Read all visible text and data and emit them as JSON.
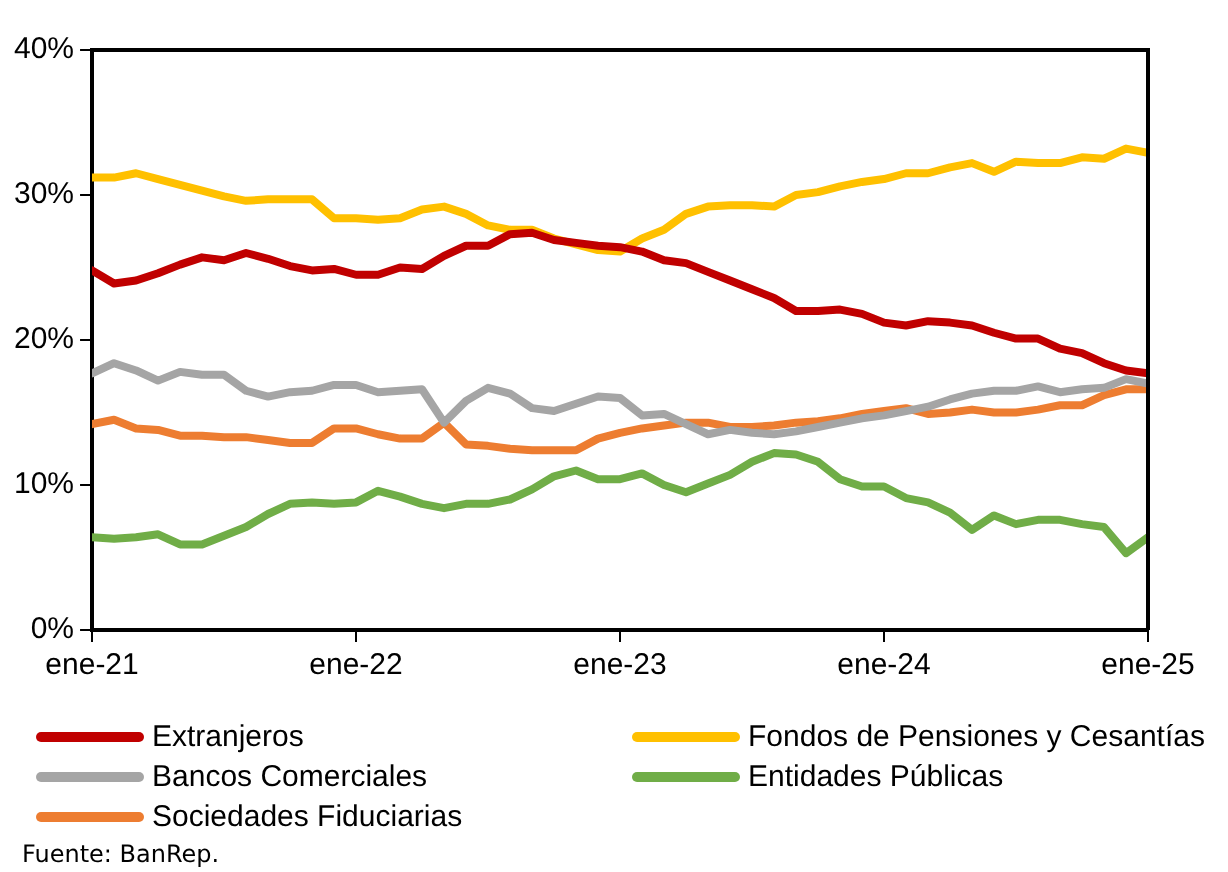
{
  "chart_data": {
    "type": "line",
    "x": [
      "2021-01",
      "2021-02",
      "2021-03",
      "2021-04",
      "2021-05",
      "2021-06",
      "2021-07",
      "2021-08",
      "2021-09",
      "2021-10",
      "2021-11",
      "2021-12",
      "2022-01",
      "2022-02",
      "2022-03",
      "2022-04",
      "2022-05",
      "2022-06",
      "2022-07",
      "2022-08",
      "2022-09",
      "2022-10",
      "2022-11",
      "2022-12",
      "2023-01",
      "2023-02",
      "2023-03",
      "2023-04",
      "2023-05",
      "2023-06",
      "2023-07",
      "2023-08",
      "2023-09",
      "2023-10",
      "2023-11",
      "2023-12",
      "2024-01",
      "2024-02",
      "2024-03",
      "2024-04",
      "2024-05",
      "2024-06",
      "2024-07",
      "2024-08",
      "2024-09",
      "2024-10",
      "2024-11",
      "2024-12",
      "2025-01"
    ],
    "series": [
      {
        "name": "Extranjeros",
        "color": "#c00000",
        "values": [
          24.8,
          23.9,
          24.1,
          24.6,
          25.2,
          25.7,
          25.5,
          26.0,
          25.6,
          25.1,
          24.8,
          24.9,
          24.5,
          24.5,
          25.0,
          24.9,
          25.8,
          26.5,
          26.5,
          27.3,
          27.4,
          26.9,
          26.7,
          26.5,
          26.4,
          26.1,
          25.5,
          25.3,
          24.7,
          24.1,
          23.5,
          22.9,
          22.0,
          22.0,
          22.1,
          21.8,
          21.2,
          21.0,
          21.3,
          21.2,
          21.0,
          20.5,
          20.1,
          20.1,
          19.4,
          19.1,
          18.4,
          17.9,
          17.7
        ]
      },
      {
        "name": "Fondos de Pensiones y Cesantías",
        "color": "#ffc000",
        "values": [
          31.2,
          31.2,
          31.5,
          31.1,
          30.7,
          30.3,
          29.9,
          29.6,
          29.7,
          29.7,
          29.7,
          28.4,
          28.4,
          28.3,
          28.4,
          29.0,
          29.2,
          28.7,
          27.9,
          27.6,
          27.6,
          27.0,
          26.6,
          26.2,
          26.1,
          27.0,
          27.6,
          28.7,
          29.2,
          29.3,
          29.3,
          29.2,
          30.0,
          30.2,
          30.6,
          30.9,
          31.1,
          31.5,
          31.5,
          31.9,
          32.2,
          31.6,
          32.3,
          32.2,
          32.2,
          32.6,
          32.5,
          33.2,
          32.9
        ]
      },
      {
        "name": "Bancos Comerciales",
        "color": "#a5a5a5",
        "values": [
          17.7,
          18.4,
          17.9,
          17.2,
          17.8,
          17.6,
          17.6,
          16.5,
          16.1,
          16.4,
          16.5,
          16.9,
          16.9,
          16.4,
          16.5,
          16.6,
          14.3,
          15.8,
          16.7,
          16.3,
          15.3,
          15.1,
          15.6,
          16.1,
          16.0,
          14.8,
          14.9,
          14.2,
          13.5,
          13.8,
          13.6,
          13.5,
          13.7,
          14.0,
          14.3,
          14.6,
          14.8,
          15.1,
          15.4,
          15.9,
          16.3,
          16.5,
          16.5,
          16.8,
          16.4,
          16.6,
          16.7,
          17.3,
          17.0
        ]
      },
      {
        "name": "Entidades Públicas",
        "color": "#70ad47",
        "values": [
          6.4,
          6.3,
          6.4,
          6.6,
          5.9,
          5.9,
          6.5,
          7.1,
          8.0,
          8.7,
          8.8,
          8.7,
          8.8,
          9.6,
          9.2,
          8.7,
          8.4,
          8.7,
          8.7,
          9.0,
          9.7,
          10.6,
          11.0,
          10.4,
          10.4,
          10.8,
          10.0,
          9.5,
          10.1,
          10.7,
          11.6,
          12.2,
          12.1,
          11.6,
          10.4,
          9.9,
          9.9,
          9.1,
          8.8,
          8.1,
          6.9,
          7.9,
          7.3,
          7.6,
          7.6,
          7.3,
          7.1,
          5.3,
          6.4
        ]
      },
      {
        "name": "Sociedades Fiduciarias",
        "color": "#ed7d31",
        "values": [
          14.2,
          14.5,
          13.9,
          13.8,
          13.4,
          13.4,
          13.3,
          13.3,
          13.1,
          12.9,
          12.9,
          13.9,
          13.9,
          13.5,
          13.2,
          13.2,
          14.3,
          12.8,
          12.7,
          12.5,
          12.4,
          12.4,
          12.4,
          13.2,
          13.6,
          13.9,
          14.1,
          14.3,
          14.3,
          14.0,
          14.0,
          14.1,
          14.3,
          14.4,
          14.6,
          14.9,
          15.1,
          15.3,
          14.9,
          15.0,
          15.2,
          15.0,
          15.0,
          15.2,
          15.5,
          15.5,
          16.2,
          16.6,
          16.6
        ]
      }
    ],
    "xlim": [
      "2021-01",
      "2025-01"
    ],
    "xticks": [
      {
        "value": "2021-01",
        "label": "ene-21"
      },
      {
        "value": "2022-01",
        "label": "ene-22"
      },
      {
        "value": "2023-01",
        "label": "ene-23"
      },
      {
        "value": "2024-01",
        "label": "ene-24"
      },
      {
        "value": "2025-01",
        "label": "ene-25"
      }
    ],
    "ylim": [
      0,
      40
    ],
    "yticks": [
      {
        "value": 0,
        "label": "0%"
      },
      {
        "value": 10,
        "label": "10%"
      },
      {
        "value": 20,
        "label": "20%"
      },
      {
        "value": 30,
        "label": "30%"
      },
      {
        "value": 40,
        "label": "40%"
      }
    ],
    "grid": false,
    "legend": "bottom",
    "marker": "none",
    "line_style": "solid",
    "annotations": [
      "Fuente: BanRep."
    ]
  }
}
